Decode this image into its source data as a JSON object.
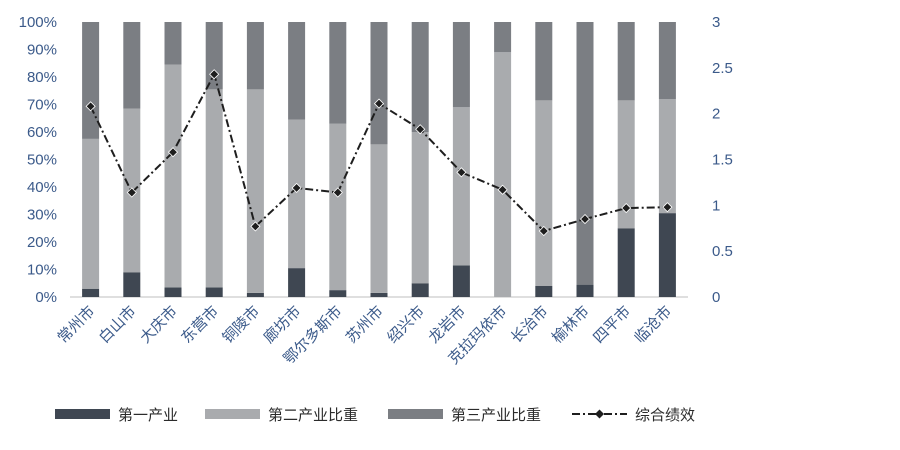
{
  "chart_data": {
    "type": "bar",
    "stacked": true,
    "categories": [
      "常州市",
      "白山市",
      "大庆市",
      "东营市",
      "铜陵市",
      "廊坊市",
      "鄂尔多斯市",
      "苏州市",
      "绍兴市",
      "龙岩市",
      "克拉玛依市",
      "长治市",
      "榆林市",
      "四平市",
      "临沧市"
    ],
    "series": [
      {
        "name": "第一产业",
        "kind": "bar",
        "axis": "left",
        "color": "#3f4752",
        "values": [
          3,
          9,
          3.5,
          3.5,
          1.5,
          10.5,
          2.5,
          1.5,
          5,
          11.5,
          0,
          4,
          4.5,
          25,
          30.5
        ]
      },
      {
        "name": "第二产业比重",
        "kind": "bar",
        "axis": "left",
        "color": "#a9abae",
        "values": [
          54.5,
          59.5,
          81,
          72,
          74,
          54,
          60.5,
          54,
          55,
          57.5,
          89,
          67.5,
          0,
          46.5,
          41.5
        ]
      },
      {
        "name": "第三产业比重",
        "kind": "bar",
        "axis": "left",
        "color": "#7b7e83",
        "values": [
          42.5,
          31.5,
          15.5,
          24.5,
          24.5,
          35.5,
          37,
          44.5,
          40,
          31,
          11,
          28.5,
          95.5,
          28.5,
          28
        ]
      },
      {
        "name": "综合绩效",
        "kind": "line",
        "axis": "right",
        "color": "#1e1e1e",
        "values": [
          2.08,
          1.14,
          1.58,
          2.43,
          0.77,
          1.19,
          1.14,
          2.11,
          1.83,
          1.36,
          1.17,
          0.72,
          0.85,
          0.97,
          0.98
        ]
      }
    ],
    "y_left": {
      "ylim": [
        0,
        100
      ],
      "ticks": [
        "0%",
        "10%",
        "20%",
        "30%",
        "40%",
        "50%",
        "60%",
        "70%",
        "80%",
        "90%",
        "100%"
      ]
    },
    "y_right": {
      "ylim": [
        0,
        3
      ],
      "ticks": [
        "0",
        "0.5",
        "1",
        "1.5",
        "2",
        "2.5",
        "3"
      ]
    },
    "legend": {
      "placement": "bottom"
    },
    "grid": false
  }
}
